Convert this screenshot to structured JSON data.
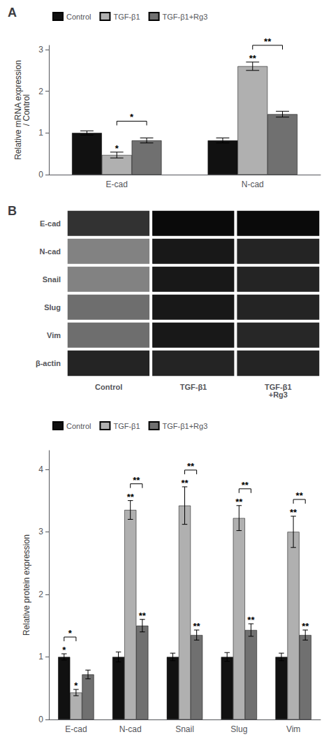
{
  "chart_data": [
    {
      "type": "bar",
      "title": "A",
      "ylabel": "Relative mRNA expression\n/ Control",
      "categories": [
        "E-cad",
        "N-cad"
      ],
      "series": [
        {
          "name": "Control",
          "color": "#111111",
          "values": [
            1.0,
            0.82
          ],
          "errors": [
            0.05,
            0.06
          ]
        },
        {
          "name": "TGF-β1",
          "color": "#b0b0b0",
          "values": [
            0.47,
            2.6
          ],
          "errors": [
            0.07,
            0.1
          ]
        },
        {
          "name": "TGF-β1+Rg3",
          "color": "#707070",
          "values": [
            0.82,
            1.45
          ],
          "errors": [
            0.06,
            0.07
          ]
        }
      ],
      "ylim": [
        0,
        3.1
      ],
      "yticks": [
        0,
        1,
        2,
        3
      ],
      "grid": false,
      "legend": "upper left",
      "annotations": [
        {
          "text": "*",
          "category": "E-cad",
          "series": "TGF-β1"
        },
        {
          "text": "*",
          "category": "E-cad",
          "bracket": [
            "TGF-β1",
            "TGF-β1+Rg3"
          ]
        },
        {
          "text": "**",
          "category": "N-cad",
          "series": "TGF-β1"
        },
        {
          "text": "**",
          "category": "N-cad",
          "bracket": [
            "TGF-β1",
            "TGF-β1+Rg3"
          ]
        }
      ]
    },
    {
      "type": "heatmap",
      "title": "B",
      "categories": [
        "Control",
        "TGF-β1",
        "TGF-β1\n+Rg3"
      ],
      "rows": [
        "E-cad",
        "N-cad",
        "Snail",
        "Slug",
        "Vim",
        "β-actin"
      ],
      "values": [
        [
          0.75,
          0.95,
          0.95
        ],
        [
          0.35,
          0.88,
          0.82
        ],
        [
          0.35,
          0.88,
          0.82
        ],
        [
          0.45,
          0.88,
          0.82
        ],
        [
          0.45,
          0.88,
          0.8
        ],
        [
          0.82,
          0.82,
          0.82
        ]
      ],
      "grid": false
    },
    {
      "type": "bar",
      "ylabel": "Relative protein expression",
      "categories": [
        "E-cad",
        "N-cad",
        "Snail",
        "Slug",
        "Vim"
      ],
      "series": [
        {
          "name": "Control",
          "color": "#111111",
          "values": [
            1.0,
            1.0,
            1.0,
            1.0,
            1.0
          ],
          "errors": [
            0.05,
            0.08,
            0.06,
            0.07,
            0.06
          ]
        },
        {
          "name": "TGF-β1",
          "color": "#b0b0b0",
          "values": [
            0.43,
            3.35,
            3.42,
            3.22,
            3.0
          ],
          "errors": [
            0.05,
            0.15,
            0.3,
            0.2,
            0.25
          ]
        },
        {
          "name": "TGF-β1+Rg3",
          "color": "#707070",
          "values": [
            0.72,
            1.5,
            1.35,
            1.43,
            1.35
          ],
          "errors": [
            0.07,
            0.1,
            0.08,
            0.1,
            0.08
          ]
        }
      ],
      "ylim": [
        0,
        4.3
      ],
      "yticks": [
        0,
        1,
        2,
        3,
        4
      ],
      "grid": false,
      "legend": "upper left",
      "annotations": [
        {
          "text": "*",
          "category": "E-cad",
          "series": "Control"
        },
        {
          "text": "*",
          "category": "E-cad",
          "series": "TGF-β1"
        },
        {
          "text": "*",
          "category": "E-cad",
          "bracket": [
            "Control",
            "TGF-β1"
          ]
        },
        {
          "text": "**",
          "category": "N-cad",
          "series": "TGF-β1"
        },
        {
          "text": "**",
          "category": "N-cad",
          "series": "TGF-β1+Rg3"
        },
        {
          "text": "**",
          "category": "N-cad",
          "bracket": [
            "TGF-β1",
            "TGF-β1+Rg3"
          ]
        },
        {
          "text": "**",
          "category": "Snail",
          "series": "TGF-β1"
        },
        {
          "text": "**",
          "category": "Snail",
          "series": "TGF-β1+Rg3"
        },
        {
          "text": "**",
          "category": "Snail",
          "bracket": [
            "TGF-β1",
            "TGF-β1+Rg3"
          ]
        },
        {
          "text": "**",
          "category": "Slug",
          "series": "TGF-β1"
        },
        {
          "text": "**",
          "category": "Slug",
          "series": "TGF-β1+Rg3"
        },
        {
          "text": "**",
          "category": "Slug",
          "bracket": [
            "TGF-β1",
            "TGF-β1+Rg3"
          ]
        },
        {
          "text": "**",
          "category": "Vim",
          "series": "TGF-β1"
        },
        {
          "text": "**",
          "category": "Vim",
          "series": "TGF-β1+Rg3"
        },
        {
          "text": "**",
          "category": "Vim",
          "bracket": [
            "TGF-β1",
            "TGF-β1+Rg3"
          ]
        }
      ]
    }
  ]
}
